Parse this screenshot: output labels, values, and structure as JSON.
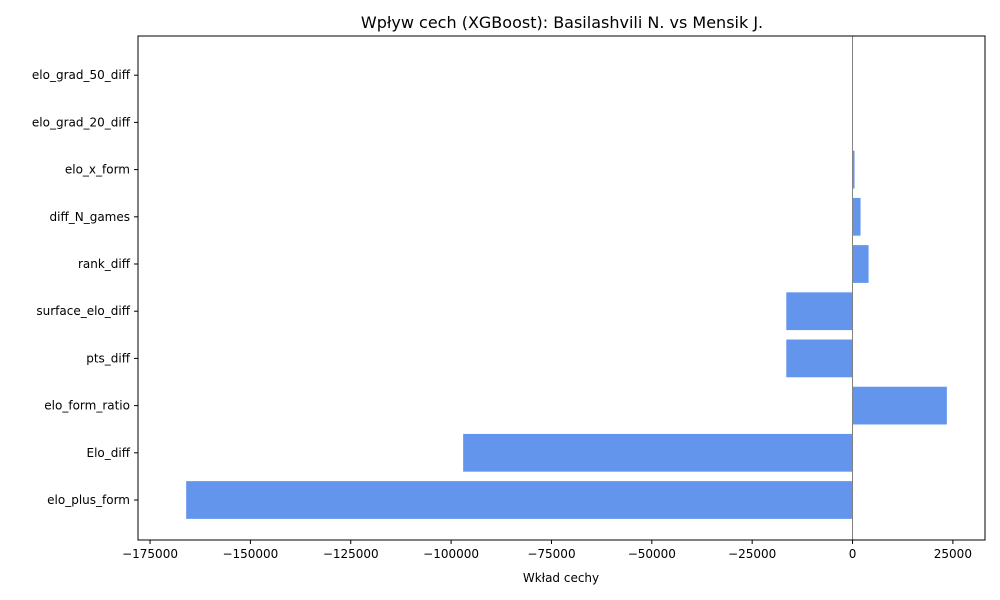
{
  "chart_data": {
    "type": "bar",
    "orientation": "horizontal",
    "title": "Wpływ cech (XGBoost): Basilashvili N. vs Mensik J.",
    "xlabel": "Wkład cechy",
    "ylabel": "",
    "categories": [
      "elo_plus_form",
      "Elo_diff",
      "elo_form_ratio",
      "pts_diff",
      "surface_elo_diff",
      "rank_diff",
      "diff_N_games",
      "elo_x_form",
      "elo_grad_20_diff",
      "elo_grad_50_diff"
    ],
    "values": [
      -166000,
      -97000,
      23500,
      -16500,
      -16500,
      4000,
      2000,
      500,
      0,
      0
    ],
    "xlim": [
      -178000,
      33000
    ],
    "xticks": [
      -175000,
      -150000,
      -125000,
      -100000,
      -75000,
      -50000,
      -25000,
      0,
      25000
    ],
    "xtick_labels": [
      "−175000",
      "−150000",
      "−125000",
      "−100000",
      "−75000",
      "−50000",
      "−25000",
      "0",
      "25000"
    ],
    "bar_color": "#6495ed",
    "zero_line_color": "#808080",
    "grid": false,
    "legend": "none"
  }
}
